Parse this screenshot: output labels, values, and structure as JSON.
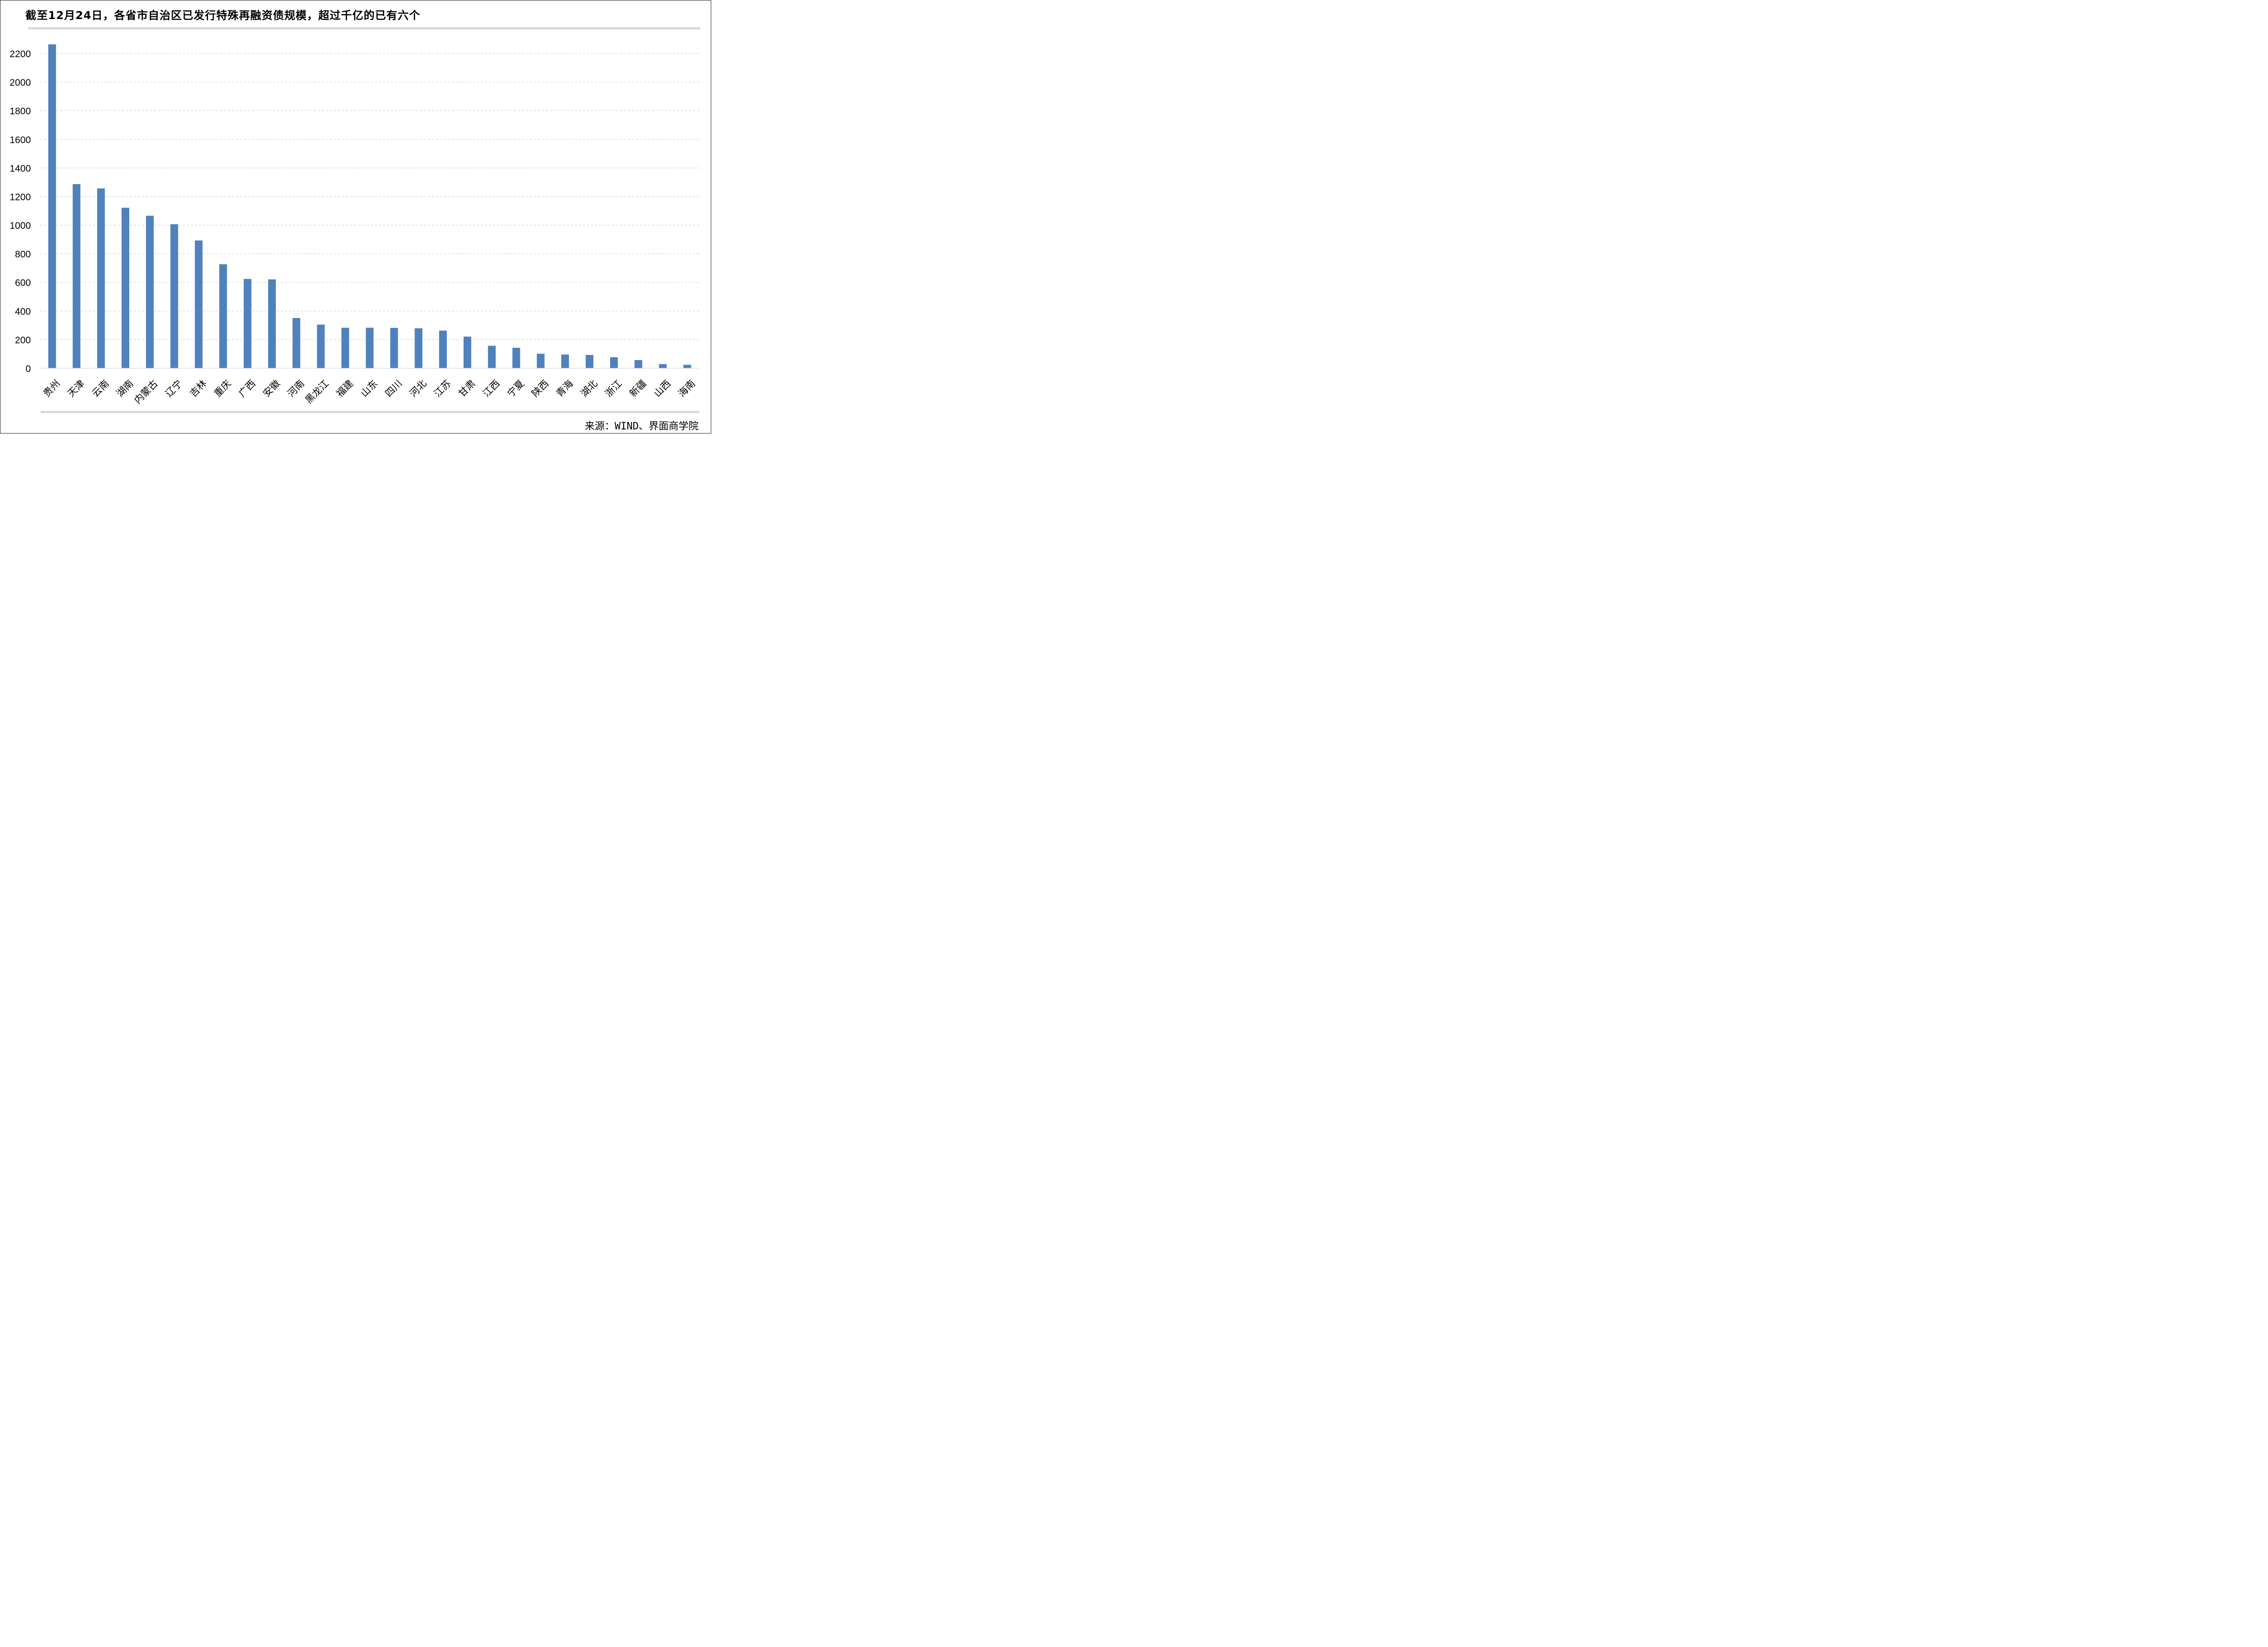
{
  "chart_data": {
    "type": "bar",
    "title": "截至12月24日，各省市自治区已发行特殊再融资债规模，超过千亿的已有六个",
    "source": "来源：WIND、界面商学院",
    "categories": [
      "贵州",
      "天津",
      "云南",
      "湖南",
      "内蒙古",
      "辽宁",
      "吉林",
      "重庆",
      "广西",
      "安徽",
      "河南",
      "黑龙江",
      "福建",
      "山东",
      "四川",
      "河北",
      "江苏",
      "甘肃",
      "江西",
      "宁夏",
      "陕西",
      "青海",
      "湖北",
      "浙江",
      "新疆",
      "山西",
      "海南"
    ],
    "values": [
      2264,
      1287,
      1257,
      1122,
      1066,
      1007,
      893,
      727,
      624,
      621,
      351,
      305,
      283,
      283,
      282,
      279,
      263,
      221,
      157,
      143,
      101,
      96,
      93,
      77,
      57,
      29,
      24
    ],
    "ylim": [
      0,
      2200
    ],
    "yticks": [
      0,
      200,
      400,
      600,
      800,
      1000,
      1200,
      1400,
      1600,
      1800,
      2000,
      2200
    ],
    "xlabel": "",
    "ylabel": "",
    "grid": true,
    "bar_color": "#4f81bd",
    "grid_color": "#c8c8c8"
  }
}
